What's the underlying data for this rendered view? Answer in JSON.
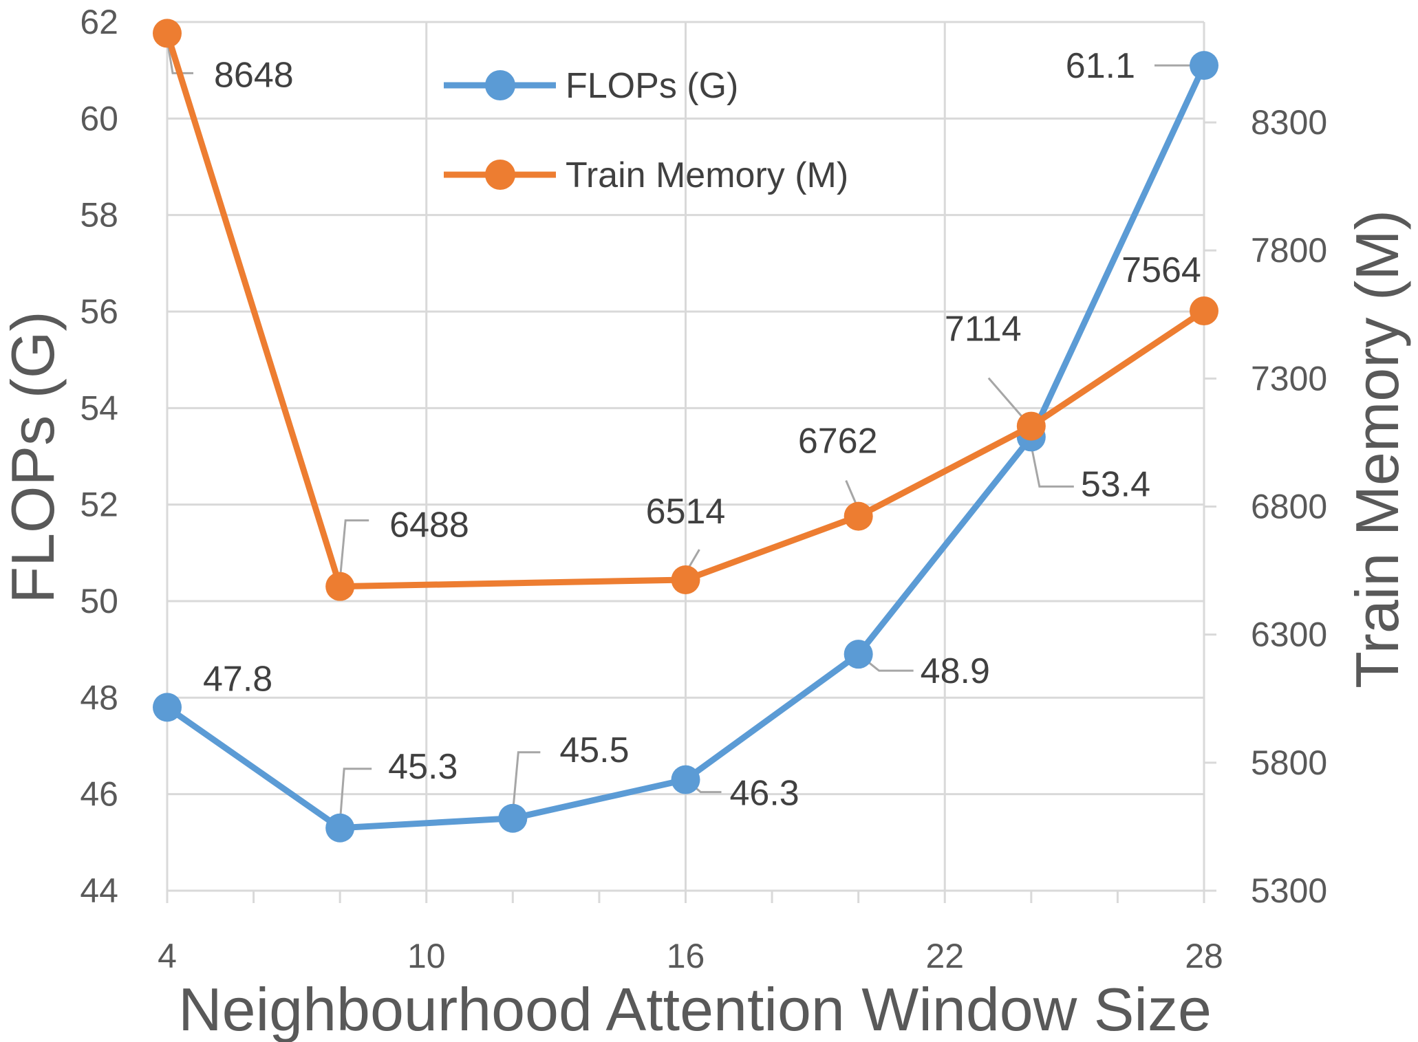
{
  "chart_data": {
    "type": "line",
    "title": "",
    "xlabel": "Neighbourhood Attention Window Size",
    "ylabel": "FLOPs (G)",
    "y2label": "Train Memory (M)",
    "xlim": [
      4,
      28
    ],
    "ylim": [
      44,
      62
    ],
    "y2lim": [
      5300,
      8300
    ],
    "x_ticks": [
      4,
      10,
      16,
      22,
      28
    ],
    "x_tick_labels": [
      "4",
      "10",
      "16",
      "22",
      "28"
    ],
    "y_ticks": [
      44,
      46,
      48,
      50,
      52,
      54,
      56,
      58,
      60,
      62
    ],
    "y_tick_labels": [
      "44",
      "46",
      "48",
      "50",
      "52",
      "54",
      "56",
      "58",
      "60",
      "62"
    ],
    "y2_ticks": [
      5300,
      5800,
      6300,
      6800,
      7300,
      7800,
      8300
    ],
    "y2_tick_labels": [
      "5300",
      "5800",
      "6300",
      "6800",
      "7300",
      "7800",
      "8300"
    ],
    "grid": true,
    "legend_position": "top-center",
    "series": [
      {
        "name": "FLOPs (G)",
        "axis": "left",
        "color": "#5b9bd5",
        "x": [
          4,
          8,
          12,
          16,
          20,
          24,
          28
        ],
        "values": [
          47.8,
          45.3,
          45.5,
          46.3,
          48.9,
          53.4,
          61.1
        ],
        "labels": [
          "47.8",
          "45.3",
          "45.5",
          "46.3",
          "48.9",
          "53.4",
          "61.1"
        ]
      },
      {
        "name": "Train Memory (M)",
        "axis": "right",
        "color": "#ed7d31",
        "x": [
          4,
          8,
          16,
          20,
          24,
          28
        ],
        "values": [
          8648,
          6488,
          6514,
          6762,
          7114,
          7564
        ],
        "labels": [
          "8648",
          "6488",
          "6514",
          "6762",
          "7114",
          "7564"
        ]
      }
    ]
  }
}
